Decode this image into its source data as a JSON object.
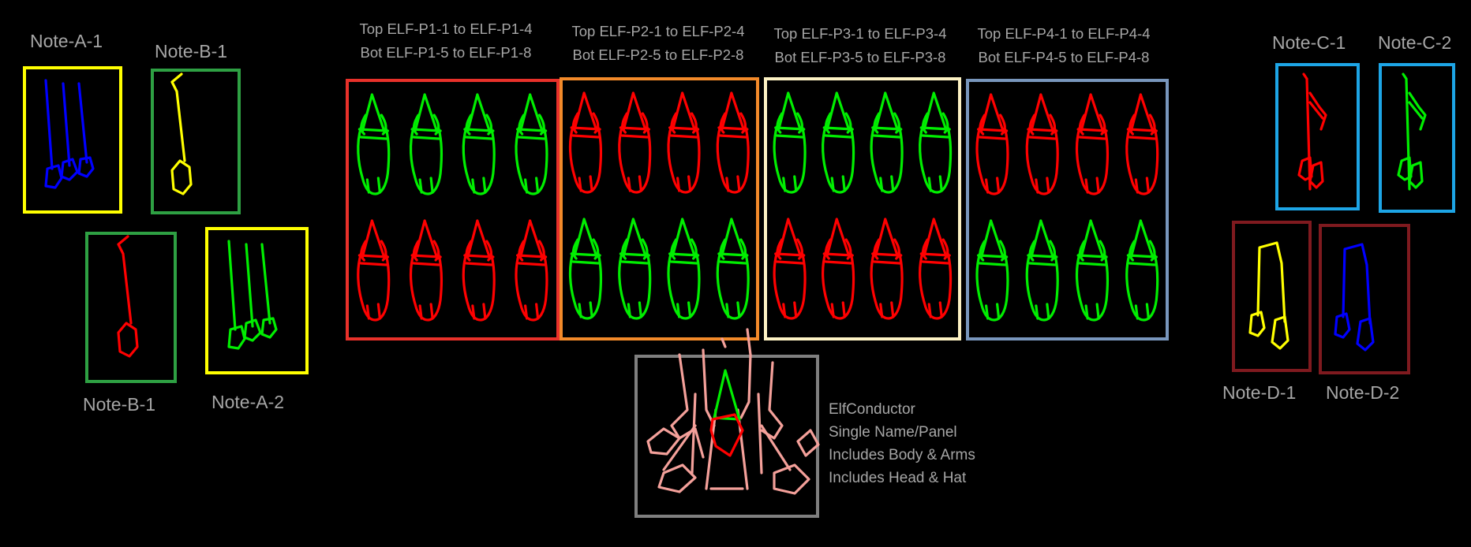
{
  "colors": {
    "background": "#000000",
    "text": "#a6a6a6",
    "red": "#ff0000",
    "green": "#00ee00",
    "blue": "#0000ff",
    "yellow": "#ffff00",
    "pink": "#f4a09a",
    "frame_yellow": "#ffff00",
    "frame_green": "#2ea043",
    "frame_red": "#e8312a",
    "frame_orange": "#f38a2a",
    "frame_cream": "#fdf2c4",
    "frame_slate": "#7896bc",
    "frame_cyan": "#1da5e6",
    "frame_maroon": "#7f1a1f",
    "frame_gray": "#7f7f7f"
  },
  "notes": [
    {
      "label": "Note-A-1",
      "glyph": "triple-note-icon",
      "color": "#0000ff",
      "frame": "#ffff00"
    },
    {
      "label": "Note-B-1",
      "glyph": "single-note-icon",
      "color": "#ffff00",
      "frame": "#2ea043"
    },
    {
      "label": "Note-B-1",
      "glyph": "single-note-icon",
      "color": "#ff0000",
      "frame": "#2ea043"
    },
    {
      "label": "Note-A-2",
      "glyph": "triple-note-icon",
      "color": "#00ee00",
      "frame": "#ffff00"
    },
    {
      "label": "Note-C-1",
      "glyph": "eighth-note-icon",
      "color": "#ff0000",
      "frame": "#1da5e6"
    },
    {
      "label": "Note-C-2",
      "glyph": "eighth-note-icon",
      "color": "#00ee00",
      "frame": "#1da5e6"
    },
    {
      "label": "Note-D-1",
      "glyph": "beamed-note-icon",
      "color": "#ffff00",
      "frame": "#7f1a1f"
    },
    {
      "label": "Note-D-2",
      "glyph": "beamed-note-icon",
      "color": "#0000ff",
      "frame": "#7f1a1f"
    }
  ],
  "panels": [
    {
      "top": "Top ELF-P1-1 to ELF-P1-4",
      "bottom": "Bot ELF-P1-5 to ELF-P1-8",
      "frame": "#e8312a",
      "top_color": "#00ee00",
      "bottom_color": "#ff0000"
    },
    {
      "top": "Top ELF-P2-1 to ELF-P2-4",
      "bottom": "Bot ELF-P2-5 to ELF-P2-8",
      "frame": "#f38a2a",
      "top_color": "#ff0000",
      "bottom_color": "#00ee00"
    },
    {
      "top": "Top ELF-P3-1 to ELF-P3-4",
      "bottom": "Bot ELF-P3-5 to ELF-P3-8",
      "frame": "#fdf2c4",
      "top_color": "#00ee00",
      "bottom_color": "#ff0000"
    },
    {
      "top": "Top ELF-P4-1 to ELF-P4-4",
      "bottom": "Bot ELF-P4-5 to ELF-P4-8",
      "frame": "#7896bc",
      "top_color": "#ff0000",
      "bottom_color": "#00ee00"
    }
  ],
  "conductor": {
    "lines": [
      "ElfConductor",
      "Single Name/Panel",
      "Includes Body & Arms",
      "Includes Head & Hat"
    ],
    "frame": "#7f7f7f",
    "body_color": "#f4a09a",
    "hat_color": "#00ee00",
    "head_color": "#ff0000"
  }
}
